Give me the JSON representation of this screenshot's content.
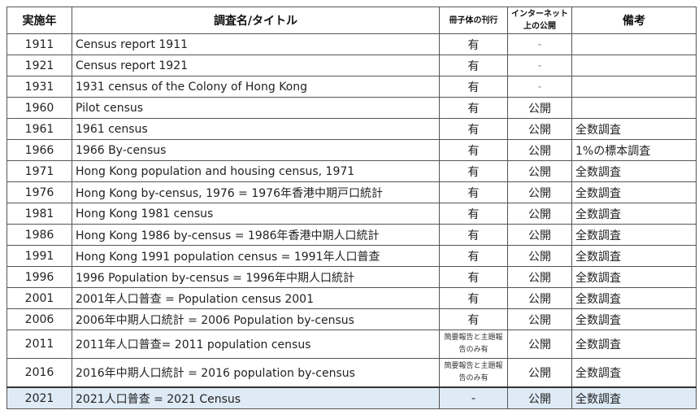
{
  "headers": {
    "year": "実施年",
    "title": "調査名/タイトル",
    "print": "冊子体の刊行",
    "online": "インターネット上の公開",
    "note": "備考"
  },
  "rows": [
    {
      "year": "1911",
      "title": "Census report 1911",
      "print": "有",
      "online": "-",
      "note": ""
    },
    {
      "year": "1921",
      "title": "Census report 1921",
      "print": "有",
      "online": "-",
      "note": ""
    },
    {
      "year": "1931",
      "title": "1931 census of the Colony of Hong Kong",
      "print": "有",
      "online": "-",
      "note": ""
    },
    {
      "year": "1960",
      "title": "Pilot census",
      "print": "有",
      "online": "公開",
      "note": ""
    },
    {
      "year": "1961",
      "title": "1961 census",
      "print": "有",
      "online": "公開",
      "note": "全数調査"
    },
    {
      "year": "1966",
      "title": "1966 By-census",
      "print": "有",
      "online": "公開",
      "note": "1%の標本調査"
    },
    {
      "year": "1971",
      "title": "Hong Kong population and housing census, 1971",
      "print": "有",
      "online": "公開",
      "note": "全数調査"
    },
    {
      "year": "1976",
      "title": "Hong Kong  by-census, 1976 = 1976年香港中期戸口統計",
      "print": "有",
      "online": "公開",
      "note": "全数調査"
    },
    {
      "year": "1981",
      "title": "Hong Kong 1981 census",
      "print": "有",
      "online": "公開",
      "note": "全数調査"
    },
    {
      "year": "1986",
      "title": "Hong Kong 1986 by-census = 1986年香港中期人口統計",
      "print": "有",
      "online": "公開",
      "note": "全数調査"
    },
    {
      "year": "1991",
      "title": "Hong Kong 1991 population census = 1991年人口普查",
      "print": "有",
      "online": "公開",
      "note": "全数調査"
    },
    {
      "year": "1996",
      "title": "1996 Population by-census = 1996年中期人口統計",
      "print": "有",
      "online": "公開",
      "note": "全数調査"
    },
    {
      "year": "2001",
      "title": "2001年人口普查 = Population census 2001",
      "print": "有",
      "online": "公開",
      "note": "全数調査"
    },
    {
      "year": "2006",
      "title": "2006年中期人口統計 = 2006 Population by-census",
      "print": "有",
      "online": "公開",
      "note": "全数調査"
    },
    {
      "year": "2011",
      "title": "2011年人口普查= 2011 population census",
      "print": "簡要報告と主題報告のみ有",
      "online": "公開",
      "note": "全数調査"
    },
    {
      "year": "2016",
      "title": "2016年中期人口統計 = 2016 population by-census",
      "print": "簡要報告と主題報告のみ有",
      "online": "公開",
      "note": "全数調査"
    },
    {
      "year": "2021",
      "title": "2021人口普查 = 2021 Census",
      "print": "-",
      "online": "公開",
      "note": "全数調査"
    }
  ]
}
